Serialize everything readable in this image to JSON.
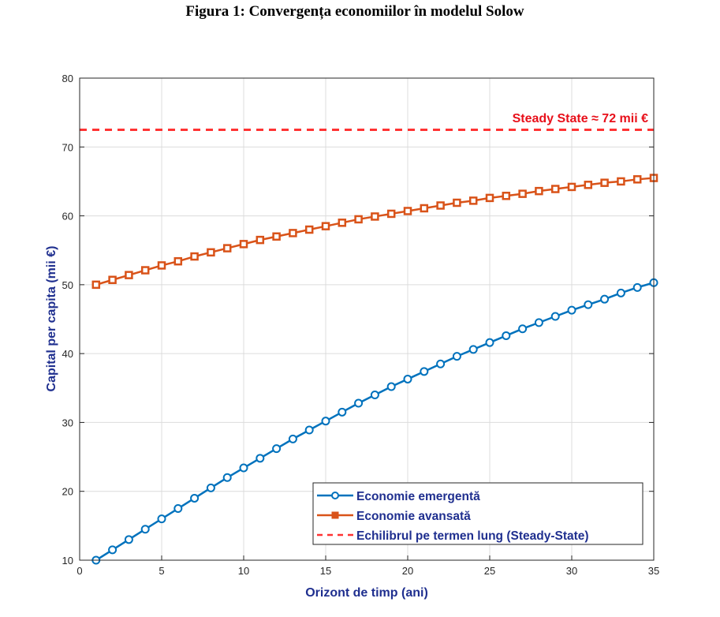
{
  "chart_data": {
    "type": "line",
    "title": "Figura 1: Convergența economiilor în modelul Solow",
    "xlabel": "Orizont de timp (ani)",
    "ylabel": "Capital per capita (mii €)",
    "xlim": [
      0,
      35
    ],
    "ylim": [
      10,
      80
    ],
    "xticks": [
      0,
      5,
      10,
      15,
      20,
      25,
      30,
      35
    ],
    "yticks": [
      10,
      20,
      30,
      40,
      50,
      60,
      70,
      80
    ],
    "grid": true,
    "legend_position": "bottom-right",
    "x": [
      1,
      2,
      3,
      4,
      5,
      6,
      7,
      8,
      9,
      10,
      11,
      12,
      13,
      14,
      15,
      16,
      17,
      18,
      19,
      20,
      21,
      22,
      23,
      24,
      25,
      26,
      27,
      28,
      29,
      30,
      31,
      32,
      33,
      34,
      35
    ],
    "series": [
      {
        "name": "Economie emergentă",
        "color": "#0072bd",
        "marker": "circle",
        "values": [
          10,
          11.5,
          13.0,
          14.5,
          16.0,
          17.5,
          19.0,
          20.5,
          22.0,
          23.4,
          24.8,
          26.2,
          27.6,
          28.9,
          30.2,
          31.5,
          32.8,
          34.0,
          35.2,
          36.3,
          37.4,
          38.5,
          39.6,
          40.6,
          41.6,
          42.6,
          43.6,
          44.5,
          45.4,
          46.3,
          47.1,
          47.9,
          48.8,
          49.6,
          50.3
        ]
      },
      {
        "name": "Economie avansată",
        "color": "#d95319",
        "marker": "square",
        "values": [
          50.0,
          50.7,
          51.4,
          52.1,
          52.8,
          53.4,
          54.1,
          54.7,
          55.3,
          55.9,
          56.5,
          57.0,
          57.5,
          58.0,
          58.5,
          59.0,
          59.5,
          59.9,
          60.3,
          60.7,
          61.1,
          61.5,
          61.9,
          62.2,
          62.6,
          62.9,
          63.2,
          63.6,
          63.9,
          64.2,
          64.5,
          64.8,
          65.0,
          65.3,
          65.5
        ]
      },
      {
        "name": "Echilibrul pe termen lung (Steady-State)",
        "color": "#ff3333",
        "style": "dashed",
        "constant": 72.5
      }
    ],
    "annotations": [
      {
        "text": "Steady State ≈ 72 mii €",
        "x": 35,
        "y": 72.5
      }
    ]
  }
}
